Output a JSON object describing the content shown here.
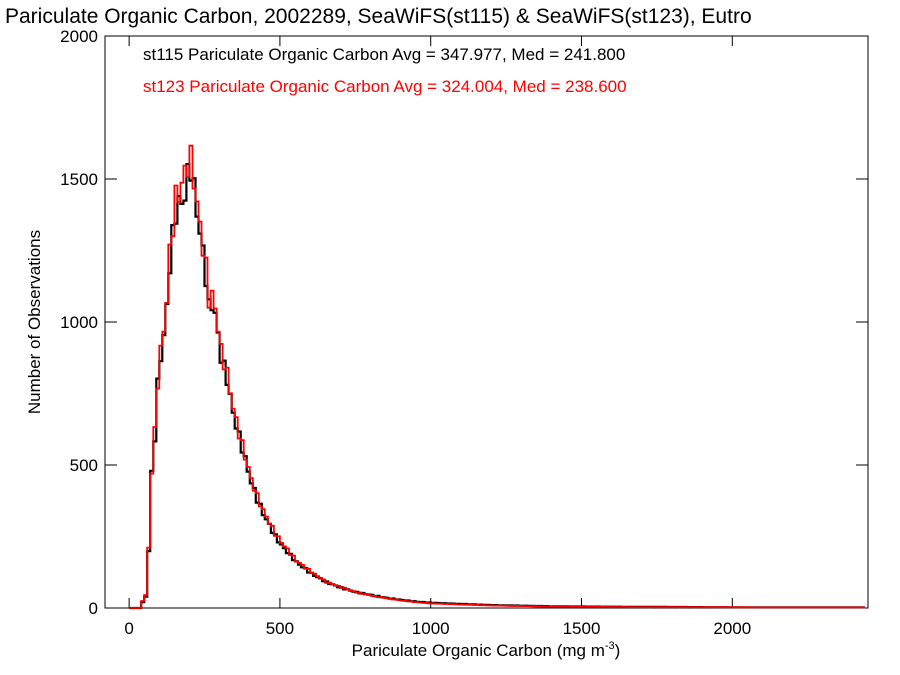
{
  "chart_data": {
    "type": "histogram",
    "title": "Pariculate Organic Carbon, 2002289, SeaWiFS(st115) & SeaWiFS(st123), Eutro",
    "xlabel": "Pariculate Organic Carbon (mg m",
    "xlabel_superscript": "-3",
    "xlabel_close": ")",
    "ylabel": "Number of Observations",
    "xlim": [
      -80,
      2450
    ],
    "ylim": [
      0,
      2000
    ],
    "xticks": [
      0,
      500,
      1000,
      1500,
      2000
    ],
    "yticks": [
      0,
      500,
      1000,
      1500,
      2000
    ],
    "bin_width": 10,
    "grid": false,
    "series": [
      {
        "name": "st115",
        "color": "#000000",
        "stats_text": "st115 Pariculate Organic Carbon Avg = 347.977, Med = 241.800",
        "points": [
          [
            0,
            0
          ],
          [
            30,
            0
          ],
          [
            40,
            20
          ],
          [
            50,
            40
          ],
          [
            60,
            200
          ],
          [
            70,
            470
          ],
          [
            80,
            600
          ],
          [
            90,
            780
          ],
          [
            100,
            880
          ],
          [
            110,
            950
          ],
          [
            120,
            1050
          ],
          [
            130,
            1200
          ],
          [
            140,
            1300
          ],
          [
            150,
            1380
          ],
          [
            160,
            1420
          ],
          [
            170,
            1410
          ],
          [
            180,
            1450
          ],
          [
            190,
            1510
          ],
          [
            200,
            1540
          ],
          [
            210,
            1470
          ],
          [
            220,
            1380
          ],
          [
            230,
            1320
          ],
          [
            240,
            1240
          ],
          [
            250,
            1160
          ],
          [
            260,
            1050
          ],
          [
            270,
            1060
          ],
          [
            280,
            1030
          ],
          [
            290,
            950
          ],
          [
            300,
            880
          ],
          [
            320,
            800
          ],
          [
            340,
            680
          ],
          [
            360,
            600
          ],
          [
            380,
            520
          ],
          [
            400,
            440
          ],
          [
            420,
            380
          ],
          [
            440,
            330
          ],
          [
            460,
            290
          ],
          [
            480,
            250
          ],
          [
            500,
            220
          ],
          [
            550,
            160
          ],
          [
            600,
            120
          ],
          [
            650,
            90
          ],
          [
            700,
            70
          ],
          [
            750,
            55
          ],
          [
            800,
            45
          ],
          [
            850,
            35
          ],
          [
            900,
            28
          ],
          [
            950,
            22
          ],
          [
            1000,
            18
          ],
          [
            1100,
            14
          ],
          [
            1200,
            10
          ],
          [
            1300,
            8
          ],
          [
            1400,
            6
          ],
          [
            1500,
            5
          ],
          [
            1700,
            4
          ],
          [
            1900,
            3
          ],
          [
            2100,
            2
          ],
          [
            2300,
            2
          ],
          [
            2440,
            2
          ]
        ]
      },
      {
        "name": "st123",
        "color": "#ff0000",
        "stats_text": "st123 Pariculate Organic Carbon Avg = 324.004, Med = 238.600",
        "points": [
          [
            0,
            0
          ],
          [
            30,
            0
          ],
          [
            40,
            25
          ],
          [
            50,
            45
          ],
          [
            60,
            210
          ],
          [
            70,
            480
          ],
          [
            80,
            615
          ],
          [
            90,
            790
          ],
          [
            100,
            900
          ],
          [
            110,
            970
          ],
          [
            120,
            1080
          ],
          [
            130,
            1240
          ],
          [
            140,
            1340
          ],
          [
            150,
            1440
          ],
          [
            160,
            1440
          ],
          [
            170,
            1490
          ],
          [
            180,
            1520
          ],
          [
            190,
            1550
          ],
          [
            200,
            1570
          ],
          [
            210,
            1500
          ],
          [
            220,
            1410
          ],
          [
            230,
            1340
          ],
          [
            240,
            1260
          ],
          [
            250,
            1190
          ],
          [
            260,
            1080
          ],
          [
            270,
            1090
          ],
          [
            280,
            1050
          ],
          [
            290,
            980
          ],
          [
            300,
            900
          ],
          [
            320,
            820
          ],
          [
            340,
            700
          ],
          [
            360,
            610
          ],
          [
            380,
            530
          ],
          [
            400,
            450
          ],
          [
            420,
            390
          ],
          [
            440,
            340
          ],
          [
            460,
            300
          ],
          [
            480,
            260
          ],
          [
            500,
            230
          ],
          [
            550,
            165
          ],
          [
            600,
            125
          ],
          [
            650,
            90
          ],
          [
            700,
            72
          ],
          [
            750,
            55
          ],
          [
            800,
            43
          ],
          [
            850,
            34
          ],
          [
            900,
            26
          ],
          [
            950,
            20
          ],
          [
            1000,
            16
          ],
          [
            1100,
            12
          ],
          [
            1200,
            9
          ],
          [
            1300,
            7
          ],
          [
            1400,
            5
          ],
          [
            1500,
            4
          ],
          [
            1700,
            3
          ],
          [
            1900,
            3
          ],
          [
            2100,
            2
          ],
          [
            2300,
            2
          ],
          [
            2440,
            2
          ]
        ]
      }
    ]
  }
}
